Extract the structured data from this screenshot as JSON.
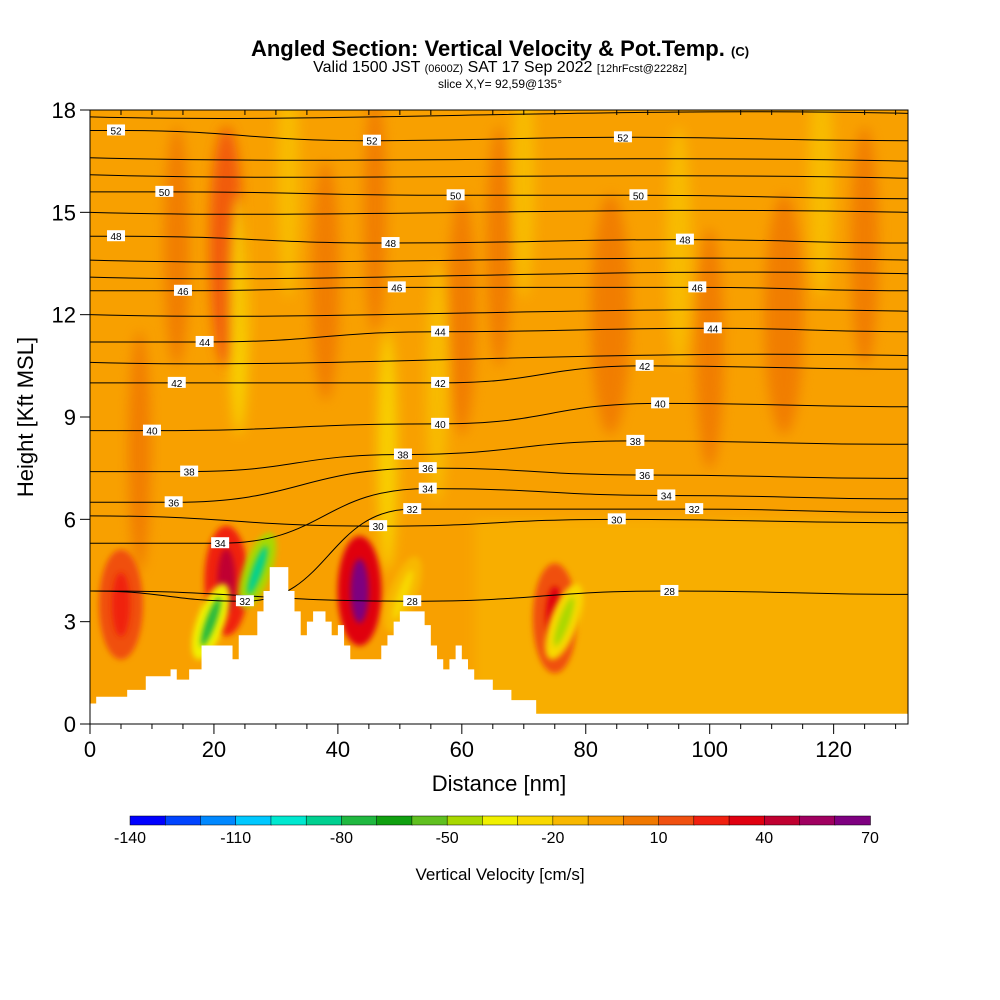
{
  "title": {
    "main": "Angled Section: Vertical Velocity & Pot.Temp.",
    "main_unit": "(C)",
    "valid_prefix": "Valid 1500 JST",
    "valid_z": "(0600Z)",
    "valid_date": "SAT 17 Sep 2022",
    "valid_fcst": "[12hrFcst@2228z]",
    "slice": "slice X,Y= 92,59@135°"
  },
  "chart_data": {
    "type": "heatmap",
    "xlabel": "Distance [nm]",
    "ylabel": "Height [Kft MSL]",
    "xlim": [
      0,
      132
    ],
    "ylim": [
      0,
      18
    ],
    "xticks": [
      0,
      20,
      40,
      60,
      80,
      100,
      120
    ],
    "yticks": [
      0,
      3,
      6,
      9,
      12,
      15,
      18
    ],
    "colorbar": {
      "label": "Vertical Velocity [cm/s]",
      "tick_labels": [
        "-140",
        "-110",
        "-80",
        "-50",
        "-20",
        "10",
        "40",
        "70"
      ],
      "tick_values": [
        -140,
        -110,
        -80,
        -50,
        -20,
        10,
        40,
        70
      ],
      "colors": [
        "#0000ff",
        "#0044ff",
        "#0088ff",
        "#00c8ff",
        "#00e8d0",
        "#00d090",
        "#20b840",
        "#10a010",
        "#60c020",
        "#a8d800",
        "#f0f000",
        "#f8d800",
        "#f8b800",
        "#f89c00",
        "#f07800",
        "#f05010",
        "#f02010",
        "#e00010",
        "#c00030",
        "#a00060",
        "#7e0080"
      ]
    },
    "theta_contour_labels": [
      {
        "value": "52",
        "x": 4.2,
        "y": 17.4
      },
      {
        "value": "52",
        "x": 45.5,
        "y": 17.1
      },
      {
        "value": "52",
        "x": 86.0,
        "y": 17.2
      },
      {
        "value": "50",
        "x": 12.0,
        "y": 15.6
      },
      {
        "value": "50",
        "x": 59.0,
        "y": 15.5
      },
      {
        "value": "50",
        "x": 88.5,
        "y": 15.5
      },
      {
        "value": "48",
        "x": 4.2,
        "y": 14.3
      },
      {
        "value": "48",
        "x": 48.5,
        "y": 14.1
      },
      {
        "value": "48",
        "x": 96.0,
        "y": 14.2
      },
      {
        "value": "46",
        "x": 15.0,
        "y": 12.7
      },
      {
        "value": "46",
        "x": 49.5,
        "y": 12.8
      },
      {
        "value": "46",
        "x": 98.0,
        "y": 12.8
      },
      {
        "value": "44",
        "x": 18.5,
        "y": 11.2
      },
      {
        "value": "44",
        "x": 56.5,
        "y": 11.5
      },
      {
        "value": "44",
        "x": 100.5,
        "y": 11.6
      },
      {
        "value": "42",
        "x": 14.0,
        "y": 10.0
      },
      {
        "value": "42",
        "x": 56.5,
        "y": 10.0
      },
      {
        "value": "42",
        "x": 89.5,
        "y": 10.5
      },
      {
        "value": "40",
        "x": 10.0,
        "y": 8.6
      },
      {
        "value": "40",
        "x": 56.5,
        "y": 8.8
      },
      {
        "value": "40",
        "x": 92.0,
        "y": 9.4
      },
      {
        "value": "38",
        "x": 16.0,
        "y": 7.4
      },
      {
        "value": "38",
        "x": 50.5,
        "y": 7.9
      },
      {
        "value": "38",
        "x": 88.0,
        "y": 8.3
      },
      {
        "value": "36",
        "x": 13.5,
        "y": 6.5
      },
      {
        "value": "36",
        "x": 54.5,
        "y": 7.5
      },
      {
        "value": "36",
        "x": 89.5,
        "y": 7.3
      },
      {
        "value": "34",
        "x": 21.0,
        "y": 5.3
      },
      {
        "value": "34",
        "x": 54.5,
        "y": 6.9
      },
      {
        "value": "34",
        "x": 93.0,
        "y": 6.7
      },
      {
        "value": "32",
        "x": 25.0,
        "y": 3.6
      },
      {
        "value": "32",
        "x": 52.0,
        "y": 6.3
      },
      {
        "value": "32",
        "x": 97.5,
        "y": 6.3
      },
      {
        "value": "30",
        "x": 46.5,
        "y": 5.8
      },
      {
        "value": "30",
        "x": 85.0,
        "y": 6.0
      },
      {
        "value": "28",
        "x": 52.0,
        "y": 3.6
      },
      {
        "value": "28",
        "x": 93.5,
        "y": 3.9
      }
    ],
    "updraft_maxima": [
      {
        "x": 22,
        "y": 4.2,
        "w": 45
      },
      {
        "x": 43.5,
        "y": 3.9,
        "w": 70
      },
      {
        "x": 75,
        "y": 3.1,
        "w": 35
      },
      {
        "x": 5,
        "y": 3.5,
        "w": 25
      }
    ],
    "downdraft_minima": [
      {
        "x": 19.5,
        "y": 3.0,
        "w": -80
      },
      {
        "x": 27,
        "y": 4.5,
        "w": -90
      },
      {
        "x": 76.5,
        "y": 3.0,
        "w": -45
      },
      {
        "x": 50.5,
        "y": 3.8,
        "w": -30
      }
    ],
    "terrain_profile": [
      [
        0,
        0.6
      ],
      [
        1,
        0.8
      ],
      [
        6,
        1.0
      ],
      [
        9,
        1.4
      ],
      [
        13,
        1.6
      ],
      [
        14,
        1.3
      ],
      [
        16,
        1.6
      ],
      [
        18,
        2.3
      ],
      [
        22,
        2.3
      ],
      [
        23,
        1.9
      ],
      [
        24,
        2.6
      ],
      [
        26,
        2.6
      ],
      [
        27,
        3.3
      ],
      [
        28,
        3.9
      ],
      [
        29,
        4.6
      ],
      [
        31,
        4.6
      ],
      [
        32,
        3.9
      ],
      [
        33,
        3.3
      ],
      [
        34,
        2.6
      ],
      [
        35,
        3.0
      ],
      [
        36,
        3.3
      ],
      [
        38,
        3.0
      ],
      [
        39,
        2.6
      ],
      [
        40,
        2.9
      ],
      [
        41,
        2.3
      ],
      [
        42,
        1.9
      ],
      [
        46,
        1.9
      ],
      [
        47,
        2.3
      ],
      [
        48,
        2.6
      ],
      [
        49,
        3.0
      ],
      [
        50,
        3.3
      ],
      [
        53,
        3.3
      ],
      [
        54,
        2.9
      ],
      [
        55,
        2.3
      ],
      [
        56,
        1.9
      ],
      [
        57,
        1.6
      ],
      [
        58,
        1.9
      ],
      [
        59,
        2.3
      ],
      [
        60,
        1.9
      ],
      [
        61,
        1.6
      ],
      [
        62,
        1.3
      ],
      [
        65,
        1.0
      ],
      [
        68,
        0.7
      ],
      [
        72,
        0.3
      ],
      [
        132,
        0.3
      ]
    ]
  }
}
